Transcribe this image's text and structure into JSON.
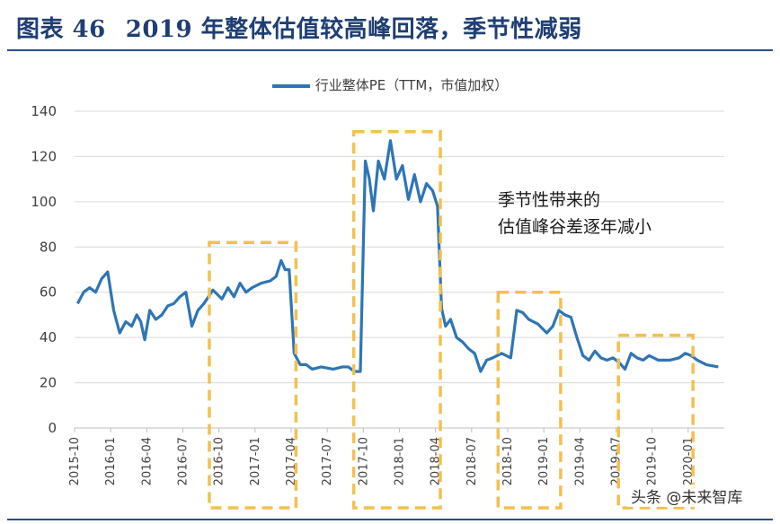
{
  "header": {
    "figure_number": "图表 46",
    "title": "2019 年整体估值较高峰回落，季节性减弱"
  },
  "chart_data": {
    "type": "line",
    "title": "2019 年整体估值较高峰回落，季节性减弱",
    "xlabel": "",
    "ylabel": "",
    "ylim": [
      0,
      140
    ],
    "y_ticks": [
      0,
      20,
      40,
      60,
      80,
      100,
      120,
      140
    ],
    "x_ticks": [
      "2015-10",
      "2016-01",
      "2016-04",
      "2016-07",
      "2016-10",
      "2017-01",
      "2017-04",
      "2017-07",
      "2017-10",
      "2018-01",
      "2018-04",
      "2018-07",
      "2018-10",
      "2019-01",
      "2019-04",
      "2019-07",
      "2019-10",
      "2020-01"
    ],
    "grid": "horizontal",
    "legend_position": "top",
    "series": [
      {
        "name": "行业整体PE（TTM，市值加权）",
        "color": "#2e75b6",
        "points": [
          [
            "2015-10",
            55
          ],
          [
            "2015-10",
            60
          ],
          [
            "2015-11",
            62
          ],
          [
            "2015-11",
            60
          ],
          [
            "2015-12",
            66
          ],
          [
            "2015-12",
            69
          ],
          [
            "2016-01",
            52
          ],
          [
            "2016-01",
            42
          ],
          [
            "2016-02",
            47
          ],
          [
            "2016-02",
            45
          ],
          [
            "2016-03",
            50
          ],
          [
            "2016-03",
            47
          ],
          [
            "2016-03",
            39
          ],
          [
            "2016-04",
            52
          ],
          [
            "2016-04",
            48
          ],
          [
            "2016-05",
            50
          ],
          [
            "2016-05",
            54
          ],
          [
            "2016-06",
            55
          ],
          [
            "2016-06",
            58
          ],
          [
            "2016-07",
            60
          ],
          [
            "2016-07",
            45
          ],
          [
            "2016-08",
            52
          ],
          [
            "2016-08",
            55
          ],
          [
            "2016-09",
            61
          ],
          [
            "2016-10",
            57
          ],
          [
            "2016-10",
            62
          ],
          [
            "2016-11",
            58
          ],
          [
            "2016-11",
            64
          ],
          [
            "2016-12",
            60
          ],
          [
            "2016-12",
            62
          ],
          [
            "2017-01",
            64
          ],
          [
            "2017-02",
            65
          ],
          [
            "2017-02",
            67
          ],
          [
            "2017-03",
            74
          ],
          [
            "2017-03",
            70
          ],
          [
            "2017-03",
            70
          ],
          [
            "2017-04",
            33
          ],
          [
            "2017-04",
            28
          ],
          [
            "2017-05",
            28
          ],
          [
            "2017-05",
            26
          ],
          [
            "2017-06",
            27
          ],
          [
            "2017-07",
            26
          ],
          [
            "2017-08",
            27
          ],
          [
            "2017-08",
            27
          ],
          [
            "2017-09",
            25
          ],
          [
            "2017-09",
            25
          ],
          [
            "2017-10",
            118
          ],
          [
            "2017-10",
            110
          ],
          [
            "2017-10",
            96
          ],
          [
            "2017-11",
            118
          ],
          [
            "2017-11",
            110
          ],
          [
            "2017-12",
            127
          ],
          [
            "2017-12",
            110
          ],
          [
            "2018-01",
            116
          ],
          [
            "2018-01",
            101
          ],
          [
            "2018-02",
            112
          ],
          [
            "2018-02",
            100
          ],
          [
            "2018-03",
            108
          ],
          [
            "2018-03",
            105
          ],
          [
            "2018-04",
            98
          ],
          [
            "2018-04",
            53
          ],
          [
            "2018-04",
            45
          ],
          [
            "2018-05",
            48
          ],
          [
            "2018-05",
            40
          ],
          [
            "2018-06",
            38
          ],
          [
            "2018-06",
            35
          ],
          [
            "2018-07",
            33
          ],
          [
            "2018-07",
            25
          ],
          [
            "2018-08",
            30
          ],
          [
            "2018-08",
            31
          ],
          [
            "2018-09",
            33
          ],
          [
            "2018-10",
            31
          ],
          [
            "2018-10",
            52
          ],
          [
            "2018-11",
            51
          ],
          [
            "2018-11",
            48
          ],
          [
            "2018-12",
            46
          ],
          [
            "2019-01",
            42
          ],
          [
            "2019-01",
            45
          ],
          [
            "2019-02",
            52
          ],
          [
            "2019-02",
            50
          ],
          [
            "2019-03",
            49
          ],
          [
            "2019-03",
            40
          ],
          [
            "2019-04",
            32
          ],
          [
            "2019-04",
            30
          ],
          [
            "2019-05",
            34
          ],
          [
            "2019-05",
            31
          ],
          [
            "2019-06",
            30
          ],
          [
            "2019-06",
            31
          ],
          [
            "2019-07",
            29
          ],
          [
            "2019-07",
            26
          ],
          [
            "2019-08",
            33
          ],
          [
            "2019-08",
            31
          ],
          [
            "2019-09",
            30
          ],
          [
            "2019-09",
            32
          ],
          [
            "2019-10",
            30
          ],
          [
            "2019-11",
            30
          ],
          [
            "2019-12",
            31
          ],
          [
            "2019-12",
            33
          ],
          [
            "2020-01",
            32
          ],
          [
            "2020-01",
            30
          ],
          [
            "2020-02",
            28
          ],
          [
            "2020-03",
            27
          ]
        ]
      }
    ],
    "highlight_boxes": [
      {
        "from": "2016-09",
        "to": "2017-04"
      },
      {
        "from": "2017-09",
        "to": "2018-04"
      },
      {
        "from": "2018-09",
        "to": "2019-02"
      },
      {
        "from": "2019-07",
        "to": "2020-01"
      }
    ],
    "annotation": [
      "季节性带来的",
      "估值峰谷差逐年减小"
    ]
  },
  "colors": {
    "title": "#1f3e74",
    "line": "#2e75b6",
    "box": "#f2c14e",
    "rule": "#2a4d8a"
  },
  "watermark": "头条 @未来智库"
}
